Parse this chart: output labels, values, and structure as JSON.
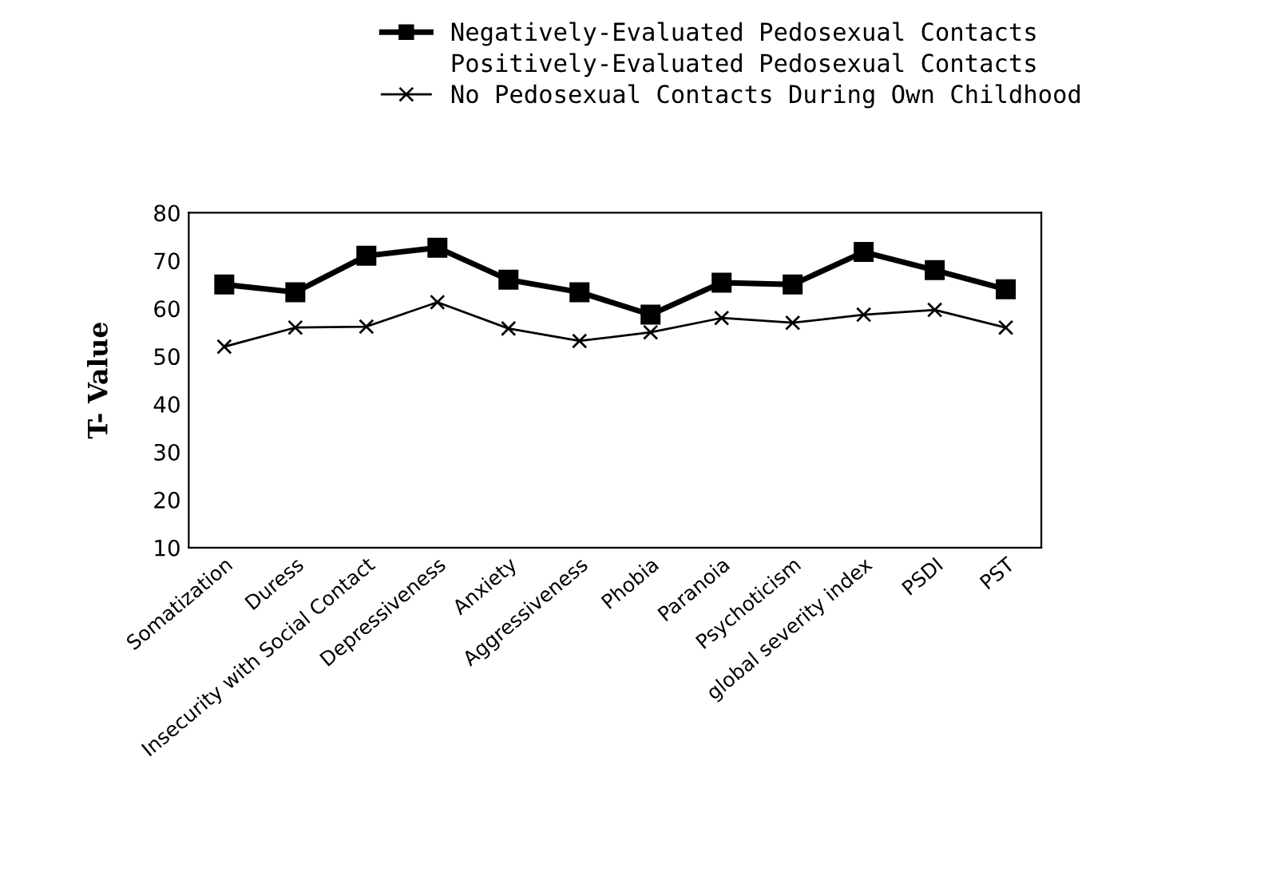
{
  "chart_data": {
    "type": "line",
    "ylabel": "T- Value",
    "categories": [
      "Somatization",
      "Duress",
      "Insecurity with Social Contact",
      "Depressiveness",
      "Anxiety",
      "Aggressiveness",
      "Phobia",
      "Paranoia",
      "Psychoticism",
      "global severity index",
      "PSDI",
      "PST"
    ],
    "series": [
      {
        "name": "Negatively-Evaluated Pedosexual Contacts",
        "color": "#000000",
        "marker": "square",
        "values": [
          65,
          63.4,
          71,
          72.7,
          66,
          63.4,
          58.7,
          65.4,
          65,
          71.8,
          68,
          64
        ]
      },
      {
        "name": "Positively-Evaluated Pedosexual Contacts",
        "marker": "none",
        "values": [
          null,
          null,
          null,
          null,
          null,
          null,
          null,
          null,
          null,
          null,
          null,
          null
        ]
      },
      {
        "name": "No Pedosexual Contacts During Own Childhood",
        "color": "#000000",
        "marker": "cross",
        "values": [
          52,
          56,
          56.2,
          61.3,
          55.8,
          53.2,
          55,
          58,
          57,
          58.7,
          59.7,
          56
        ]
      }
    ],
    "ylim": [
      10,
      80
    ],
    "yticks": [
      10,
      20,
      30,
      40,
      50,
      60,
      70,
      80
    ],
    "grid": false,
    "legend": "top"
  }
}
